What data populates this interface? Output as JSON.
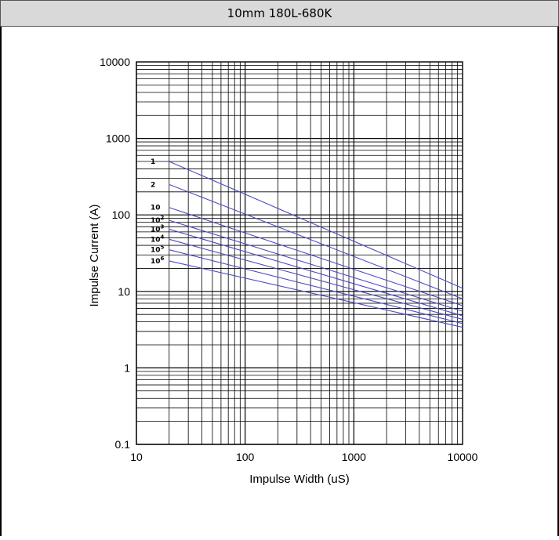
{
  "header": {
    "title": "10mm 180L-680K"
  },
  "chart_data": {
    "type": "line",
    "title": "",
    "xlabel": "Impulse Width (uS)",
    "ylabel": "Impulse Current (A)",
    "x_scale": "log",
    "y_scale": "log",
    "xlim": [
      10,
      10000
    ],
    "ylim": [
      0.1,
      10000
    ],
    "x_ticks": [
      "10",
      "100",
      "1000",
      "10000"
    ],
    "y_ticks": [
      "0.1",
      "1",
      "10",
      "100",
      "1000",
      "10000"
    ],
    "grid": true,
    "series_color": "#4b4bc8",
    "series": [
      {
        "name": "1",
        "label_base": "1",
        "label_exp": "",
        "x": [
          20,
          10000
        ],
        "y": [
          500,
          11
        ]
      },
      {
        "name": "2",
        "label_base": "2",
        "label_exp": "",
        "x": [
          20,
          10000
        ],
        "y": [
          250,
          8
        ]
      },
      {
        "name": "10",
        "label_base": "10",
        "label_exp": "",
        "x": [
          20,
          10000
        ],
        "y": [
          125,
          6.5
        ]
      },
      {
        "name": "10^2",
        "label_base": "10",
        "label_exp": "2",
        "x": [
          20,
          10000
        ],
        "y": [
          85,
          5.5
        ]
      },
      {
        "name": "10^3",
        "label_base": "10",
        "label_exp": "3",
        "x": [
          20,
          10000
        ],
        "y": [
          65,
          4.8
        ]
      },
      {
        "name": "10^4",
        "label_base": "10",
        "label_exp": "4",
        "x": [
          20,
          10000
        ],
        "y": [
          48,
          4.3
        ]
      },
      {
        "name": "10^5",
        "label_base": "10",
        "label_exp": "5",
        "x": [
          20,
          10000
        ],
        "y": [
          35,
          3.8
        ]
      },
      {
        "name": "10^6",
        "label_base": "10",
        "label_exp": "6",
        "x": [
          20,
          10000
        ],
        "y": [
          25,
          3.4
        ]
      }
    ]
  }
}
